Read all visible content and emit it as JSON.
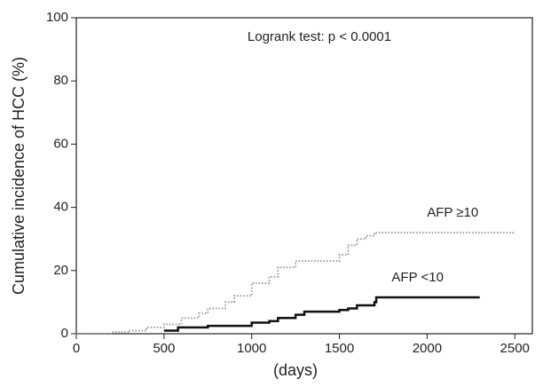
{
  "chart_data": {
    "type": "step",
    "xlabel": "(days)",
    "ylabel": "Cumulative incidence of HCC (%)",
    "annotation": "Logrank test: p < 0.0001",
    "xlim": [
      0,
      2600
    ],
    "xticks": [
      0,
      500,
      1000,
      1500,
      2000,
      2500
    ],
    "ylim": [
      0,
      100
    ],
    "yticks": [
      0,
      20,
      40,
      60,
      80,
      100
    ],
    "grid": false,
    "series": [
      {
        "name": "AFP ≥10",
        "color": "#9a9a9a",
        "style": "dotted",
        "x": [
          0,
          200,
          300,
          400,
          500,
          600,
          700,
          750,
          850,
          900,
          1000,
          1100,
          1150,
          1250,
          1450,
          1500,
          1550,
          1600,
          1650,
          1700,
          2500
        ],
        "values": [
          0,
          0.5,
          1,
          2,
          3,
          5,
          6.5,
          8,
          10,
          12,
          16,
          18,
          21,
          23,
          23,
          25,
          28,
          30,
          31,
          32,
          32
        ]
      },
      {
        "name": "AFP <10",
        "color": "#111111",
        "style": "solid",
        "x": [
          500,
          580,
          750,
          1000,
          1100,
          1150,
          1250,
          1300,
          1500,
          1550,
          1600,
          1700,
          1710,
          2300
        ],
        "values": [
          1,
          2,
          2.5,
          3.5,
          4,
          5,
          6,
          7,
          7.5,
          8,
          9,
          10,
          11.5,
          11.5
        ]
      }
    ]
  }
}
